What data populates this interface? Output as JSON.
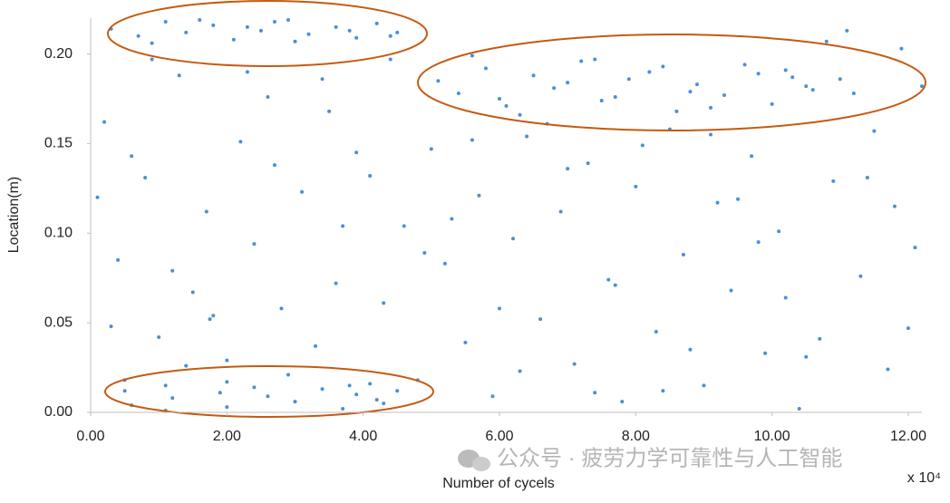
{
  "chart_data": {
    "type": "scatter",
    "x_label": "Number of cycels",
    "y_label": "Location(m)",
    "x_multiplier": "x 10⁴",
    "watermark": "公众号 · 疲劳力学可靠性与人工智能",
    "color": "#4a8fd6",
    "xlim": [
      0,
      12.2
    ],
    "ylim": [
      0,
      0.22
    ],
    "xticks": [
      {
        "value": 0,
        "label": "0.00"
      },
      {
        "value": 2,
        "label": "2.00"
      },
      {
        "value": 4,
        "label": "4.00"
      },
      {
        "value": 6,
        "label": "6.00"
      },
      {
        "value": 8,
        "label": "8.00"
      },
      {
        "value": 10,
        "label": "10.00"
      },
      {
        "value": 12,
        "label": "12.00"
      }
    ],
    "yticks": [
      {
        "value": 0,
        "label": "0.00"
      },
      {
        "value": 0.05,
        "label": "0.05"
      },
      {
        "value": 0.1,
        "label": "0.10"
      },
      {
        "value": 0.15,
        "label": "0.15"
      },
      {
        "value": 0.2,
        "label": "0.20"
      }
    ],
    "x": [
      0.3,
      0.7,
      1.1,
      1.4,
      1.8,
      2.1,
      2.5,
      2.9,
      3.2,
      3.6,
      3.9,
      4.2,
      4.5,
      0.9,
      1.6,
      2.3,
      3.0,
      3.8,
      4.4,
      2.7,
      5.1,
      5.4,
      5.8,
      6.1,
      6.5,
      6.8,
      7.2,
      7.5,
      7.9,
      8.2,
      8.6,
      8.9,
      9.3,
      9.6,
      10.0,
      10.3,
      10.6,
      5.6,
      6.3,
      7.0,
      7.7,
      8.4,
      9.1,
      9.8,
      10.5,
      6.0,
      7.4,
      8.8,
      10.2,
      11.0,
      0.5,
      0.6,
      1.1,
      1.2,
      1.9,
      2.0,
      2.4,
      2.6,
      3.0,
      3.4,
      3.7,
      3.9,
      4.1,
      4.3,
      4.5,
      1.1,
      0.5,
      2.0,
      4.2,
      3.8,
      0.2,
      0.4,
      0.8,
      1.0,
      1.3,
      1.5,
      1.7,
      2.0,
      2.2,
      2.4,
      2.6,
      2.8,
      3.1,
      3.3,
      3.5,
      3.7,
      0.3,
      0.6,
      1.2,
      1.8,
      2.9,
      3.4,
      0.9,
      1.4,
      2.7,
      3.6,
      1.75,
      0.1,
      2.3,
      3.9,
      4.1,
      4.3,
      4.6,
      4.8,
      5.0,
      5.2,
      5.5,
      5.7,
      5.9,
      6.2,
      6.4,
      6.6,
      6.9,
      7.1,
      7.3,
      7.6,
      7.8,
      8.0,
      8.3,
      8.5,
      8.7,
      9.0,
      9.2,
      9.4,
      9.7,
      9.9,
      10.1,
      10.4,
      10.7,
      10.9,
      11.1,
      11.3,
      11.5,
      11.7,
      11.9,
      12.1,
      4.4,
      5.3,
      6.0,
      6.7,
      7.4,
      8.1,
      8.8,
      9.5,
      10.2,
      10.8,
      11.4,
      12.0,
      4.9,
      5.6,
      6.3,
      7.0,
      7.7,
      8.4,
      9.1,
      9.8,
      10.5,
      11.2,
      11.8,
      12.2
    ],
    "values": [
      0.214,
      0.21,
      0.218,
      0.212,
      0.216,
      0.208,
      0.213,
      0.219,
      0.211,
      0.215,
      0.209,
      0.217,
      0.212,
      0.206,
      0.219,
      0.215,
      0.207,
      0.213,
      0.21,
      0.218,
      0.185,
      0.178,
      0.192,
      0.171,
      0.188,
      0.181,
      0.196,
      0.174,
      0.186,
      0.19,
      0.168,
      0.183,
      0.177,
      0.194,
      0.172,
      0.187,
      0.18,
      0.199,
      0.166,
      0.184,
      0.176,
      0.193,
      0.17,
      0.189,
      0.182,
      0.175,
      0.197,
      0.179,
      0.191,
      0.186,
      0.012,
      0.004,
      0.015,
      0.008,
      0.011,
      0.003,
      0.014,
      0.009,
      0.006,
      0.013,
      0.002,
      0.01,
      0.016,
      0.005,
      0.012,
      0.001,
      0.018,
      0.017,
      0.007,
      0.015,
      0.162,
      0.085,
      0.131,
      0.042,
      0.188,
      0.067,
      0.112,
      0.029,
      0.151,
      0.094,
      0.176,
      0.058,
      0.123,
      0.037,
      0.168,
      0.104,
      0.048,
      0.143,
      0.079,
      0.054,
      0.021,
      0.186,
      0.197,
      0.026,
      0.138,
      0.072,
      0.052,
      0.12,
      0.19,
      0.145,
      0.132,
      0.061,
      0.104,
      0.018,
      0.147,
      0.083,
      0.039,
      0.121,
      0.009,
      0.097,
      0.154,
      0.052,
      0.112,
      0.027,
      0.139,
      0.074,
      0.006,
      0.126,
      0.045,
      0.158,
      0.088,
      0.015,
      0.117,
      0.068,
      0.143,
      0.033,
      0.101,
      0.002,
      0.041,
      0.129,
      0.213,
      0.076,
      0.157,
      0.024,
      0.203,
      0.092,
      0.197,
      0.108,
      0.058,
      0.161,
      0.011,
      0.149,
      0.035,
      0.119,
      0.064,
      0.207,
      0.131,
      0.047,
      0.089,
      0.152,
      0.023,
      0.136,
      0.071,
      0.012,
      0.155,
      0.095,
      0.031,
      0.178,
      0.115,
      0.182
    ]
  }
}
